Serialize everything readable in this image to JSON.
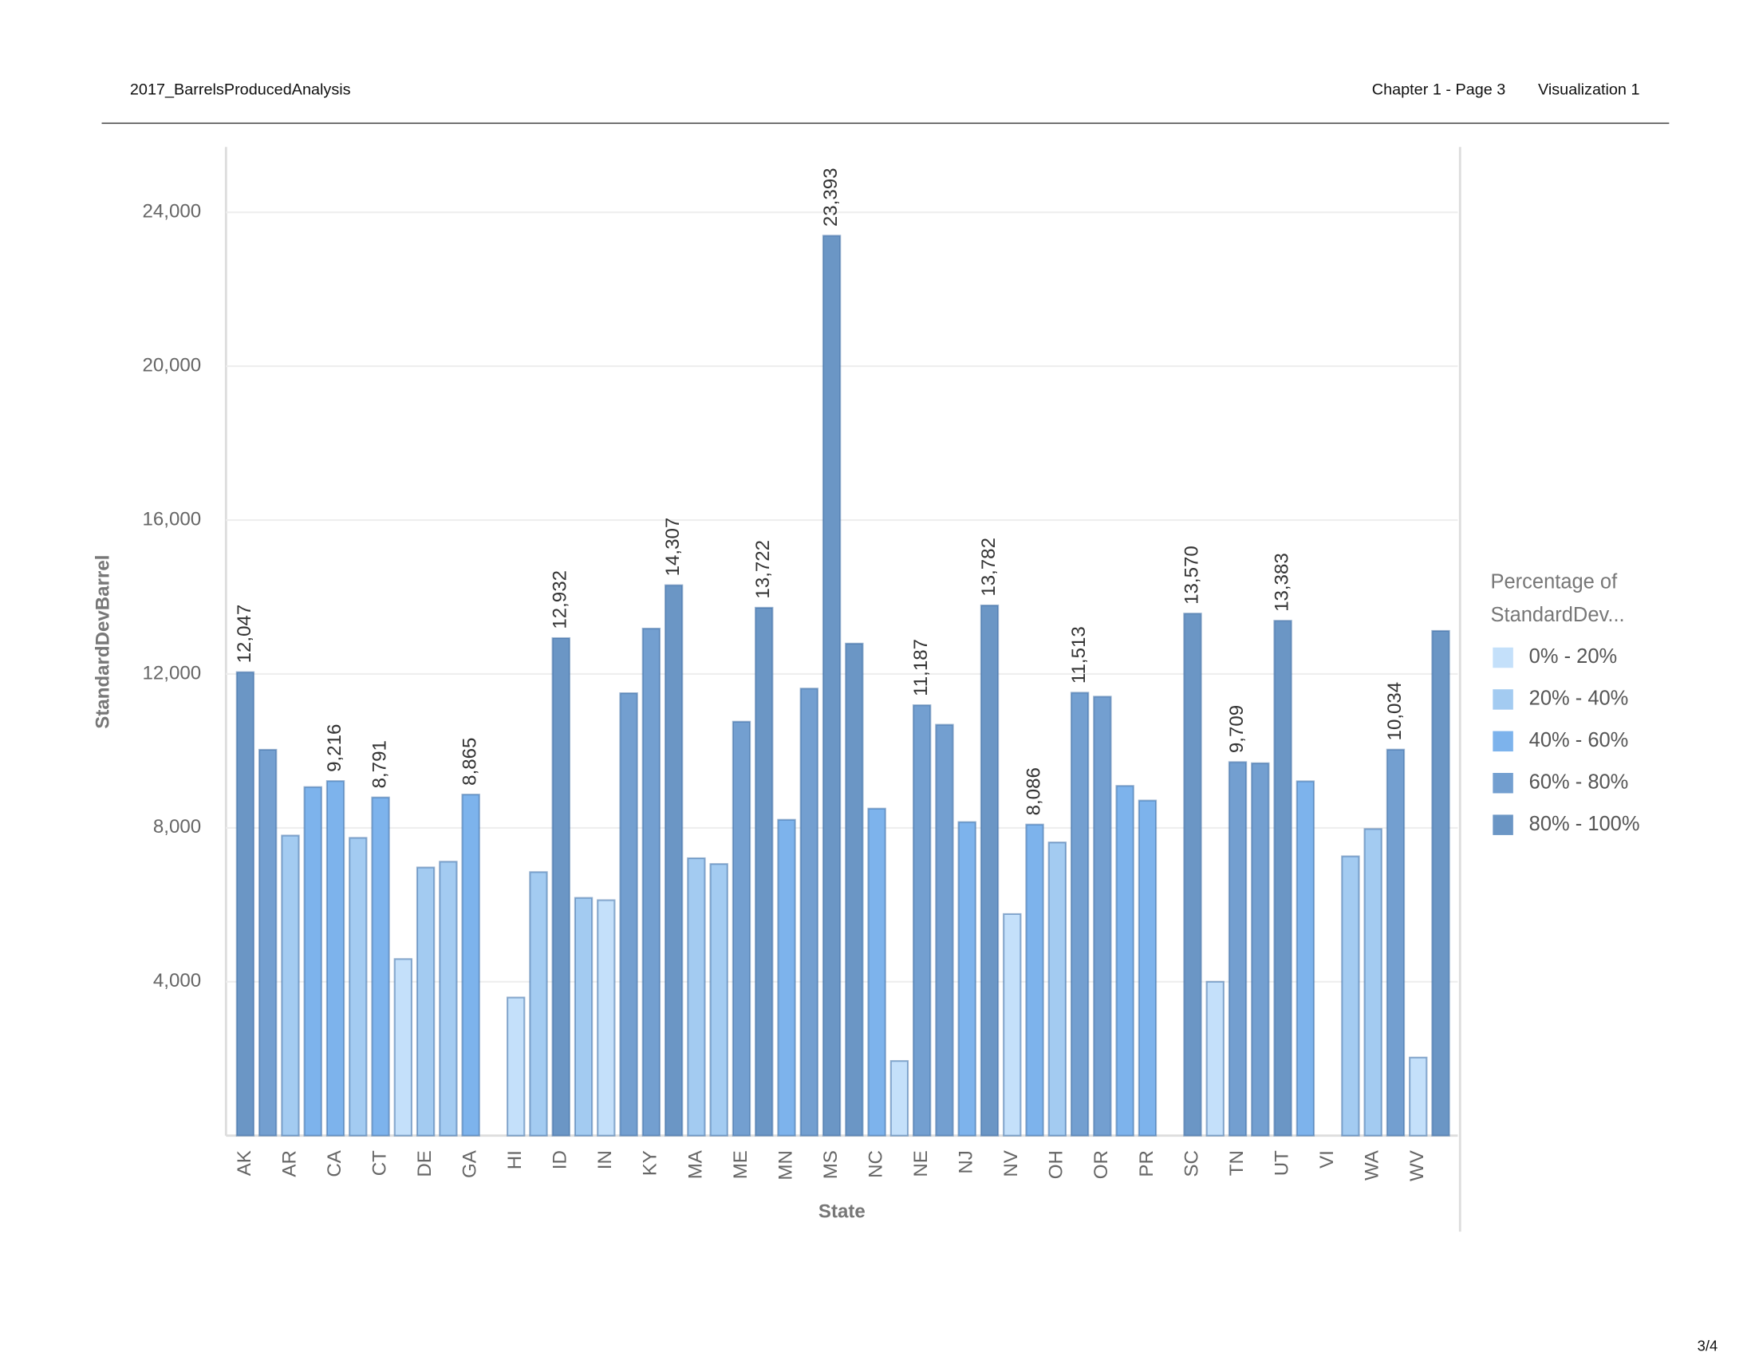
{
  "header": {
    "title": "2017_BarrelsProducedAnalysis",
    "chapter": "Chapter 1 - Page 3",
    "section": "Visualization 1"
  },
  "page_number": "3/4",
  "chart_data": {
    "type": "bar",
    "x_label": "State",
    "y_label": "StandardDevBarrel",
    "categories": [
      "AK",
      null,
      "AR",
      null,
      "CA",
      null,
      "CT",
      null,
      "DE",
      null,
      "GA",
      null,
      "HI",
      null,
      "ID",
      null,
      "IN",
      null,
      "KY",
      null,
      "MA",
      null,
      "ME",
      null,
      "MN",
      null,
      "MS",
      null,
      "NC",
      null,
      "NE",
      null,
      "NJ",
      null,
      "NV",
      null,
      "OH",
      null,
      "OR",
      null,
      "PR",
      null,
      "SC",
      null,
      "TN",
      null,
      "UT",
      null,
      "VI",
      null,
      "WA",
      null,
      "WV",
      null
    ],
    "values": [
      12047,
      10030,
      7800,
      9060,
      9216,
      7740,
      8791,
      4590,
      6970,
      7120,
      8865,
      null,
      3590,
      6850,
      12932,
      6180,
      6120,
      11500,
      13180,
      14307,
      7210,
      7060,
      10760,
      13722,
      8210,
      11620,
      23393,
      12790,
      8500,
      1940,
      11187,
      10680,
      8150,
      13782,
      5760,
      8086,
      7620,
      11513,
      11410,
      9090,
      8710,
      null,
      13570,
      4000,
      9709,
      9680,
      13383,
      9210,
      null,
      7260,
      7970,
      10034,
      2030,
      13120
    ],
    "value_labels": [
      "12,047",
      null,
      null,
      null,
      "9,216",
      null,
      "8,791",
      null,
      null,
      null,
      "8,865",
      null,
      null,
      null,
      "12,932",
      null,
      null,
      null,
      null,
      "14,307",
      null,
      null,
      null,
      "13,722",
      null,
      null,
      "23,393",
      null,
      null,
      null,
      "11,187",
      null,
      null,
      "13,782",
      null,
      "8,086",
      null,
      "11,513",
      null,
      null,
      null,
      null,
      "13,570",
      null,
      "9,709",
      null,
      "13,383",
      null,
      null,
      null,
      null,
      "10,034",
      null,
      null
    ],
    "colors": [
      "#6b96c5",
      "#739fd0",
      "#a3cbf1",
      "#7db3ec",
      "#7db3ec",
      "#a3cbf1",
      "#7db3ec",
      "#c4e0fa",
      "#a3cbf1",
      "#a3cbf1",
      "#7db3ec",
      "#7db3ec",
      "#c4e0fa",
      "#a3cbf1",
      "#6b96c5",
      "#a3cbf1",
      "#c4e0fa",
      "#739fd0",
      "#739fd0",
      "#6b96c5",
      "#a3cbf1",
      "#a3cbf1",
      "#739fd0",
      "#6b96c5",
      "#7db3ec",
      "#739fd0",
      "#6b96c5",
      "#6b96c5",
      "#7db3ec",
      "#c4e0fa",
      "#739fd0",
      "#739fd0",
      "#7db3ec",
      "#6b96c5",
      "#c4e0fa",
      "#7db3ec",
      "#a3cbf1",
      "#739fd0",
      "#739fd0",
      "#7db3ec",
      "#7db3ec",
      "#7db3ec",
      "#6b96c5",
      "#c4e0fa",
      "#739fd0",
      "#739fd0",
      "#6b96c5",
      "#7db3ec",
      "#7db3ec",
      "#a3cbf1",
      "#a3cbf1",
      "#739fd0",
      "#c4e0fa",
      "#6b96c5"
    ],
    "ylim": [
      0,
      25700
    ],
    "yticks": [
      {
        "value": 4000,
        "label": "4,000"
      },
      {
        "value": 8000,
        "label": "8,000"
      },
      {
        "value": 12000,
        "label": "12,000"
      },
      {
        "value": 16000,
        "label": "16,000"
      },
      {
        "value": 20000,
        "label": "20,000"
      },
      {
        "value": 24000,
        "label": "24,000"
      }
    ],
    "grid": true,
    "legend": {
      "title": [
        "Percentage of",
        "StandardDev..."
      ],
      "position": "right",
      "items": [
        {
          "label": "0% - 20%",
          "color": "#c4e0fa"
        },
        {
          "label": "20% - 40%",
          "color": "#a3cbf1"
        },
        {
          "label": "40% - 60%",
          "color": "#7db3ec"
        },
        {
          "label": "60% - 80%",
          "color": "#739fd0"
        },
        {
          "label": "80% - 100%",
          "color": "#6b96c5"
        }
      ]
    }
  }
}
